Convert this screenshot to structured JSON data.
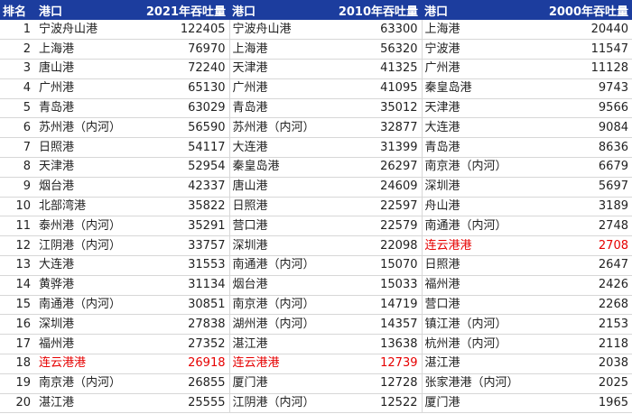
{
  "colors": {
    "header_bg": "#1c3d9e",
    "header_text": "#ffffff",
    "highlight_text": "#e60000",
    "body_text": "#222222"
  },
  "header": {
    "rank": "排名",
    "port_2021": "港口",
    "value_2021": "2021年吞吐量",
    "port_2010": "港口",
    "value_2010": "2010年吞吐量",
    "port_2000": "港口",
    "value_2000": "2000年吞吐量"
  },
  "rows": [
    {
      "rank": "1",
      "port_2021": "宁波舟山港",
      "value_2021": "122405",
      "port_2010": "宁波舟山港",
      "value_2010": "63300",
      "port_2000": "上海港",
      "value_2000": "20440"
    },
    {
      "rank": "2",
      "port_2021": "上海港",
      "value_2021": "76970",
      "port_2010": "上海港",
      "value_2010": "56320",
      "port_2000": "宁波港",
      "value_2000": "11547"
    },
    {
      "rank": "3",
      "port_2021": "唐山港",
      "value_2021": "72240",
      "port_2010": "天津港",
      "value_2010": "41325",
      "port_2000": "广州港",
      "value_2000": "11128"
    },
    {
      "rank": "4",
      "port_2021": "广州港",
      "value_2021": "65130",
      "port_2010": "广州港",
      "value_2010": "41095",
      "port_2000": "秦皇岛港",
      "value_2000": "9743"
    },
    {
      "rank": "5",
      "port_2021": "青岛港",
      "value_2021": "63029",
      "port_2010": "青岛港",
      "value_2010": "35012",
      "port_2000": "天津港",
      "value_2000": "9566"
    },
    {
      "rank": "6",
      "port_2021": "苏州港（内河）",
      "value_2021": "56590",
      "port_2010": "苏州港（内河）",
      "value_2010": "32877",
      "port_2000": "大连港",
      "value_2000": "9084"
    },
    {
      "rank": "7",
      "port_2021": "日照港",
      "value_2021": "54117",
      "port_2010": "大连港",
      "value_2010": "31399",
      "port_2000": "青岛港",
      "value_2000": "8636"
    },
    {
      "rank": "8",
      "port_2021": "天津港",
      "value_2021": "52954",
      "port_2010": "秦皇岛港",
      "value_2010": "26297",
      "port_2000": "南京港（内河）",
      "value_2000": "6679"
    },
    {
      "rank": "9",
      "port_2021": "烟台港",
      "value_2021": "42337",
      "port_2010": "唐山港",
      "value_2010": "24609",
      "port_2000": "深圳港",
      "value_2000": "5697"
    },
    {
      "rank": "10",
      "port_2021": "北部湾港",
      "value_2021": "35822",
      "port_2010": "日照港",
      "value_2010": "22597",
      "port_2000": "舟山港",
      "value_2000": "3189"
    },
    {
      "rank": "11",
      "port_2021": "泰州港（内河）",
      "value_2021": "35291",
      "port_2010": "营口港",
      "value_2010": "22579",
      "port_2000": "南通港（内河）",
      "value_2000": "2748"
    },
    {
      "rank": "12",
      "port_2021": "江阴港（内河）",
      "value_2021": "33757",
      "port_2010": "深圳港",
      "value_2010": "22098",
      "port_2000": "连云港港",
      "value_2000": "2708"
    },
    {
      "rank": "13",
      "port_2021": "大连港",
      "value_2021": "31553",
      "port_2010": "南通港（内河）",
      "value_2010": "15070",
      "port_2000": "日照港",
      "value_2000": "2647"
    },
    {
      "rank": "14",
      "port_2021": "黄骅港",
      "value_2021": "31134",
      "port_2010": "烟台港",
      "value_2010": "15033",
      "port_2000": "福州港",
      "value_2000": "2426"
    },
    {
      "rank": "15",
      "port_2021": "南通港（内河）",
      "value_2021": "30851",
      "port_2010": "南京港（内河）",
      "value_2010": "14719",
      "port_2000": "营口港",
      "value_2000": "2268"
    },
    {
      "rank": "16",
      "port_2021": "深圳港",
      "value_2021": "27838",
      "port_2010": "湖州港（内河）",
      "value_2010": "14357",
      "port_2000": "镇江港（内河）",
      "value_2000": "2153"
    },
    {
      "rank": "17",
      "port_2021": "福州港",
      "value_2021": "27352",
      "port_2010": "湛江港",
      "value_2010": "13638",
      "port_2000": "杭州港（内河）",
      "value_2000": "2118"
    },
    {
      "rank": "18",
      "port_2021": "连云港港",
      "value_2021": "26918",
      "port_2010": "连云港港",
      "value_2010": "12739",
      "port_2000": "湛江港",
      "value_2000": "2038"
    },
    {
      "rank": "19",
      "port_2021": "南京港（内河）",
      "value_2021": "26855",
      "port_2010": "厦门港",
      "value_2010": "12728",
      "port_2000": "张家港港（内河）",
      "value_2000": "2025"
    },
    {
      "rank": "20",
      "port_2021": "湛江港",
      "value_2021": "25555",
      "port_2010": "江阴港（内河）",
      "value_2010": "12522",
      "port_2000": "厦门港",
      "value_2000": "1965"
    }
  ]
}
